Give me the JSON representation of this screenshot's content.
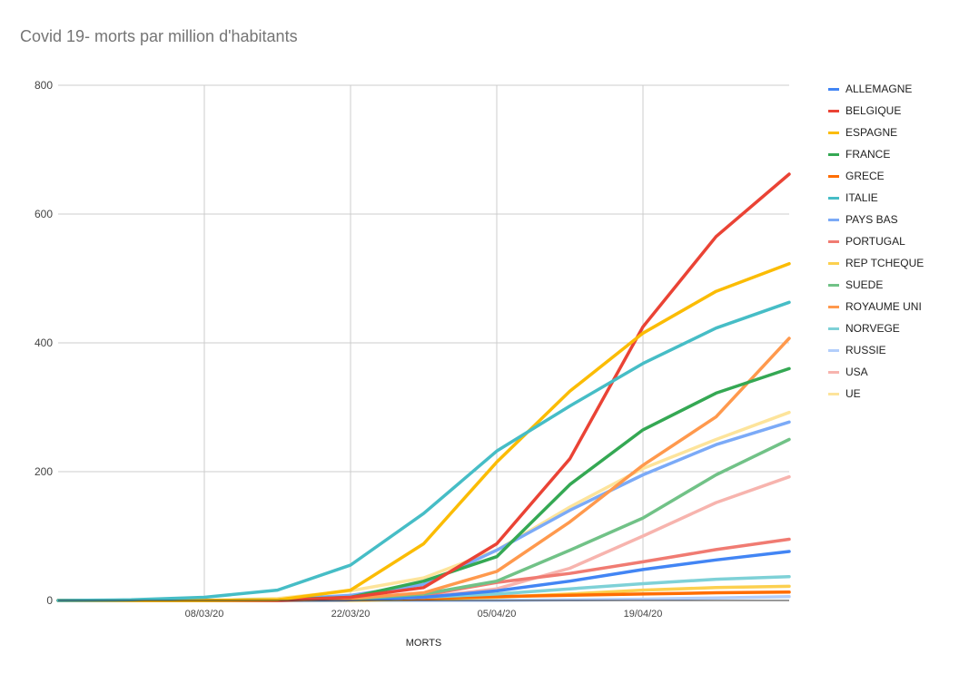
{
  "chart_data": {
    "type": "line",
    "title": "Covid 19- morts par million d'habitants",
    "xlabel": "MORTS",
    "ylabel": "",
    "ylim": [
      0,
      800
    ],
    "yticks": [
      0,
      200,
      400,
      600,
      800
    ],
    "xticks": [
      "08/03/20",
      "22/03/20",
      "05/04/20",
      "19/04/20"
    ],
    "x": [
      "24/02/20",
      "01/03/20",
      "08/03/20",
      "15/03/20",
      "22/03/20",
      "29/03/20",
      "05/04/20",
      "12/04/20",
      "19/04/20",
      "26/04/20",
      "03/05/20"
    ],
    "grid": true,
    "legend_position": "right",
    "series": [
      {
        "name": "ALLEMAGNE",
        "color": "#4285f4",
        "values": [
          0,
          0,
          0,
          0,
          1,
          5,
          15,
          30,
          48,
          63,
          76
        ]
      },
      {
        "name": "BELGIQUE",
        "color": "#ea4335",
        "values": [
          0,
          0,
          0,
          0,
          5,
          20,
          88,
          220,
          425,
          565,
          662
        ]
      },
      {
        "name": "ESPAGNE",
        "color": "#fbbc04",
        "values": [
          0,
          0,
          0,
          1,
          16,
          88,
          215,
          325,
          415,
          480,
          523
        ]
      },
      {
        "name": "FRANCE",
        "color": "#34a853",
        "values": [
          0,
          0,
          0,
          1,
          5,
          30,
          68,
          180,
          265,
          322,
          360
        ]
      },
      {
        "name": "GRECE",
        "color": "#ff6d01",
        "values": [
          0,
          0,
          0,
          0,
          1,
          3,
          6,
          8,
          10,
          12,
          13
        ]
      },
      {
        "name": "ITALIE",
        "color": "#46bdc6",
        "values": [
          0,
          1,
          5,
          16,
          55,
          135,
          232,
          302,
          368,
          423,
          463
        ]
      },
      {
        "name": "PAYS BAS",
        "color": "#7baaf7",
        "values": [
          0,
          0,
          0,
          1,
          8,
          25,
          78,
          140,
          195,
          242,
          277
        ]
      },
      {
        "name": "PORTUGAL",
        "color": "#f07b72",
        "values": [
          0,
          0,
          0,
          0,
          2,
          8,
          28,
          42,
          60,
          79,
          95
        ]
      },
      {
        "name": "REP TCHEQUE",
        "color": "#fcd04f",
        "values": [
          0,
          0,
          0,
          0,
          0,
          2,
          5,
          10,
          16,
          20,
          22
        ]
      },
      {
        "name": "SUEDE",
        "color": "#71c287",
        "values": [
          0,
          0,
          0,
          1,
          2,
          10,
          30,
          78,
          128,
          195,
          250
        ]
      },
      {
        "name": "ROYAUME UNI",
        "color": "#ff994d",
        "values": [
          0,
          0,
          0,
          0,
          3,
          12,
          45,
          122,
          210,
          285,
          407
        ]
      },
      {
        "name": "NORVEGE",
        "color": "#7ed1d7",
        "values": [
          0,
          0,
          0,
          0,
          1,
          5,
          10,
          18,
          26,
          33,
          37
        ]
      },
      {
        "name": "RUSSIE",
        "color": "#b3cefb",
        "values": [
          0,
          0,
          0,
          0,
          0,
          0,
          0,
          1,
          2,
          4,
          6
        ]
      },
      {
        "name": "USA",
        "color": "#f7b4ae",
        "values": [
          0,
          0,
          0,
          0,
          1,
          5,
          18,
          50,
          100,
          152,
          192
        ]
      },
      {
        "name": "UE",
        "color": "#fde49b",
        "values": [
          0,
          0,
          0,
          3,
          15,
          35,
          78,
          145,
          205,
          250,
          292
        ]
      }
    ]
  }
}
